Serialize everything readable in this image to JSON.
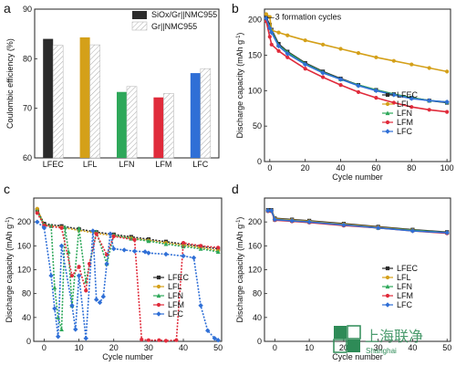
{
  "colors": {
    "LFEC": "#2b2b2b",
    "LFL": "#d4a019",
    "LFN": "#2ea85a",
    "LFM": "#e02b3b",
    "LFC": "#2f6fd6"
  },
  "watermark": {
    "text": "上海联净",
    "sub": "Shanghai"
  },
  "chart_data": [
    {
      "panel": "a",
      "type": "bar",
      "categories": [
        "LFEC",
        "LFL",
        "LFN",
        "LFM",
        "LFC"
      ],
      "series": [
        {
          "name": "SiOx/Gr||NMC955",
          "values": [
            84.0,
            84.3,
            73.3,
            72.2,
            77.1
          ]
        },
        {
          "name": "Gr||NMC955",
          "values": [
            82.7,
            82.8,
            74.4,
            73.0,
            78.0
          ]
        }
      ],
      "ylabel": "Coulombic efficiency (%)",
      "xlabel": "",
      "ylim": [
        60,
        90
      ],
      "yticks": [
        60,
        70,
        80,
        90
      ],
      "legend": "top-right"
    },
    {
      "panel": "b",
      "type": "line",
      "xlabel": "Cycle number",
      "ylabel": "Discharge capacity (mAh g-1)",
      "xlim": [
        -3,
        102
      ],
      "ylim": [
        0,
        215
      ],
      "xticks": [
        0,
        20,
        40,
        60,
        80,
        100
      ],
      "yticks": [
        0,
        50,
        100,
        150,
        200
      ],
      "annotation": "3 formation cycles",
      "legend": "right",
      "series": [
        {
          "name": "LFEC",
          "x": [
            -2,
            0,
            1,
            5,
            10,
            20,
            30,
            40,
            50,
            60,
            70,
            80,
            90,
            100
          ],
          "y": [
            203,
            193,
            186,
            166,
            155,
            139,
            127,
            117,
            108,
            101,
            95,
            90,
            86,
            83
          ]
        },
        {
          "name": "LFL",
          "x": [
            -2,
            0,
            1,
            5,
            10,
            20,
            30,
            40,
            50,
            60,
            70,
            80,
            90,
            100
          ],
          "y": [
            208,
            204,
            185,
            182,
            178,
            171,
            165,
            159,
            153,
            147,
            142,
            137,
            132,
            127
          ]
        },
        {
          "name": "LFN",
          "x": [
            -2,
            0,
            1,
            5,
            10,
            20,
            30,
            40,
            50,
            60,
            70,
            80,
            90,
            100
          ],
          "y": [
            200,
            190,
            184,
            164,
            154,
            138,
            126,
            116,
            108,
            101,
            95,
            90,
            86,
            84
          ]
        },
        {
          "name": "LFM",
          "x": [
            -2,
            0,
            1,
            5,
            10,
            20,
            30,
            40,
            50,
            60,
            70,
            80,
            90,
            100
          ],
          "y": [
            198,
            176,
            165,
            156,
            147,
            131,
            119,
            108,
            98,
            90,
            83,
            77,
            73,
            70
          ]
        },
        {
          "name": "LFC",
          "x": [
            -2,
            0,
            1,
            5,
            10,
            20,
            30,
            40,
            50,
            60,
            70,
            80,
            90,
            100
          ],
          "y": [
            202,
            188,
            182,
            163,
            152,
            137,
            125,
            116,
            107,
            100,
            94,
            89,
            86,
            84
          ]
        }
      ]
    },
    {
      "panel": "c",
      "type": "line",
      "xlabel": "Cycle number",
      "ylabel": "Discharge capacity (mAh g-1)",
      "xlim": [
        -3,
        51
      ],
      "ylim": [
        0,
        240
      ],
      "xticks": [
        0,
        10,
        20,
        30,
        40,
        50
      ],
      "yticks": [
        0,
        40,
        80,
        120,
        160,
        200
      ],
      "legend": "center-right",
      "series": [
        {
          "name": "LFEC",
          "x": [
            -2,
            0,
            5,
            10,
            15,
            20,
            25,
            30,
            35,
            40,
            45,
            50
          ],
          "y": [
            220,
            197,
            193,
            188,
            183,
            179,
            175,
            171,
            167,
            163,
            159,
            155
          ]
        },
        {
          "name": "LFL",
          "x": [
            -2,
            0,
            5,
            10,
            15,
            20,
            25,
            30,
            35,
            40,
            45,
            50
          ],
          "y": [
            222,
            195,
            191,
            186,
            181,
            177,
            173,
            169,
            165,
            161,
            157,
            152
          ]
        },
        {
          "name": "LFN",
          "x": [
            -2,
            0,
            2,
            3,
            4,
            5,
            6,
            7,
            8,
            10,
            12,
            15,
            18,
            20,
            25,
            30,
            35,
            40,
            45,
            50
          ],
          "y": [
            218,
            195,
            193,
            90,
            40,
            20,
            191,
            150,
            60,
            189,
            100,
            183,
            130,
            178,
            172,
            168,
            163,
            159,
            155,
            150
          ]
        },
        {
          "name": "LFM",
          "x": [
            -2,
            0,
            5,
            8,
            10,
            12,
            13,
            15,
            18,
            20,
            26,
            28,
            30,
            33,
            35,
            38,
            40,
            45,
            50
          ],
          "y": [
            215,
            194,
            190,
            110,
            125,
            85,
            130,
            180,
            145,
            176,
            170,
            3,
            2,
            2,
            1,
            2,
            165,
            160,
            157
          ]
        },
        {
          "name": "LFC",
          "x": [
            -2,
            0,
            2,
            3,
            4,
            5,
            8,
            9,
            10,
            12,
            14,
            15,
            16,
            17,
            18,
            19,
            20,
            23,
            26,
            29,
            30,
            35,
            40,
            43,
            45,
            47,
            49,
            50
          ],
          "y": [
            200,
            190,
            110,
            55,
            8,
            160,
            60,
            20,
            110,
            5,
            185,
            70,
            65,
            75,
            130,
            180,
            155,
            153,
            151,
            150,
            148,
            146,
            143,
            140,
            60,
            18,
            5,
            2
          ]
        }
      ]
    },
    {
      "panel": "d",
      "type": "line",
      "xlabel": "Cycle number",
      "ylabel": "Discharge capacity (mAh g-1)",
      "xlim": [
        -3,
        51
      ],
      "ylim": [
        0,
        240
      ],
      "xticks": [
        0,
        10,
        20,
        30,
        40,
        50
      ],
      "yticks": [
        0,
        40,
        80,
        120,
        160,
        200
      ],
      "legend": "right",
      "series": [
        {
          "name": "LFEC",
          "x": [
            -2,
            -1,
            0,
            5,
            10,
            20,
            30,
            40,
            50
          ],
          "y": [
            220,
            220,
            206,
            204,
            202,
            197,
            192,
            187,
            183
          ]
        },
        {
          "name": "LFL",
          "x": [
            -2,
            -1,
            0,
            5,
            10,
            20,
            30,
            40,
            50
          ],
          "y": [
            219,
            219,
            205,
            203,
            201,
            196,
            191,
            186,
            182
          ]
        },
        {
          "name": "LFN",
          "x": [
            -2,
            -1,
            0,
            5,
            10,
            20,
            30,
            40,
            50
          ],
          "y": [
            219,
            219,
            204,
            202,
            200,
            195,
            190,
            186,
            182
          ]
        },
        {
          "name": "LFM",
          "x": [
            -2,
            -1,
            0,
            5,
            10,
            20,
            30,
            40,
            50
          ],
          "y": [
            218,
            218,
            203,
            201,
            199,
            194,
            190,
            185,
            181
          ]
        },
        {
          "name": "LFC",
          "x": [
            -2,
            -1,
            0,
            5,
            10,
            20,
            30,
            40,
            50
          ],
          "y": [
            219,
            219,
            204,
            202,
            200,
            195,
            190,
            185,
            182
          ]
        }
      ]
    }
  ]
}
